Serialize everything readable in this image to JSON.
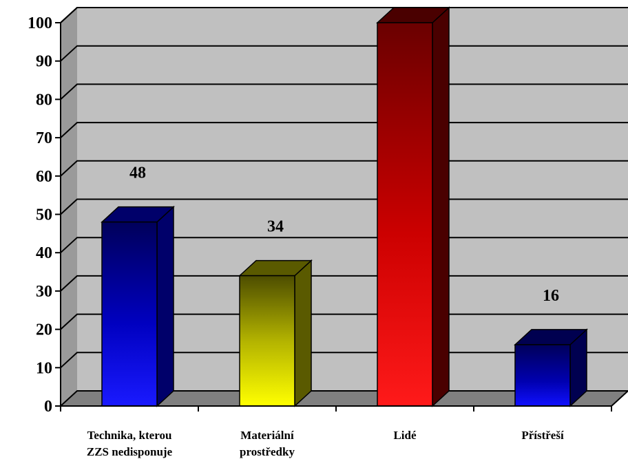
{
  "chart_data": {
    "type": "bar",
    "categories": [
      [
        "Technika, kterou",
        "ZZS nedisponuje"
      ],
      [
        "Materiální",
        "prostředky"
      ],
      [
        "Lidé"
      ],
      [
        "Přístřeší"
      ]
    ],
    "values": [
      48,
      34,
      100,
      16
    ],
    "data_labels": [
      "48",
      "34",
      "",
      "16"
    ],
    "ylim": [
      0,
      100
    ],
    "yticks": [
      "0",
      "10",
      "20",
      "30",
      "40",
      "50",
      "60",
      "70",
      "80",
      "90",
      "100"
    ],
    "grid": true,
    "legend": "none",
    "colors": {
      "wall": "#c0c0c0",
      "floor": "#808080",
      "bar_front": [
        "#1010ee",
        "#e6e600",
        "#e00000",
        "#0a0ab8"
      ],
      "bar_dark": [
        "#00006a",
        "#5a5a00",
        "#4a0000",
        "#000050"
      ]
    }
  }
}
